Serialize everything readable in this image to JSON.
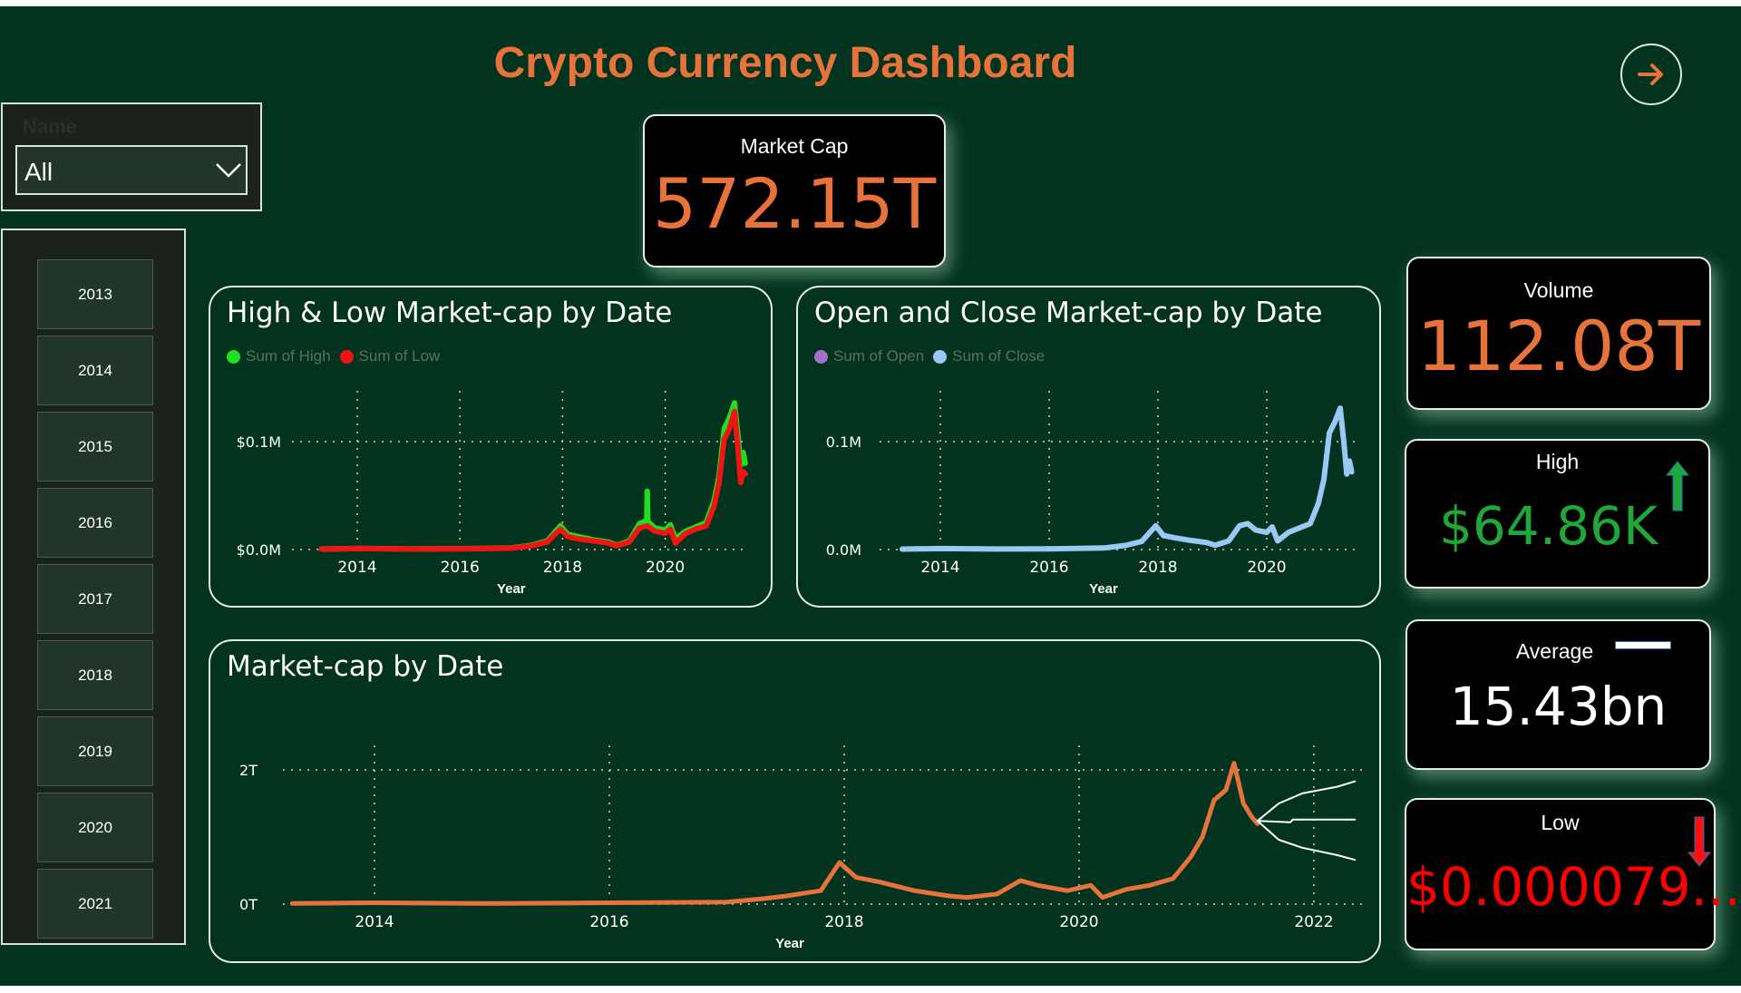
{
  "header": {
    "title": "Crypto Currency Dashboard",
    "nav_icon": "arrow-right-icon"
  },
  "slicer": {
    "label": "Name",
    "selected": "All"
  },
  "years": [
    "2013",
    "2014",
    "2015",
    "2016",
    "2017",
    "2018",
    "2019",
    "2020",
    "2021"
  ],
  "kpis": {
    "market_cap": {
      "label": "Market Cap",
      "value": "572.15T",
      "color": "#e8733a"
    },
    "volume": {
      "label": "Volume",
      "value": "112.08T",
      "color": "#e8733a"
    },
    "high": {
      "label": "High",
      "value": "$64.86K",
      "color": "#1fa83a",
      "indicator": "up-arrow"
    },
    "average": {
      "label": "Average",
      "value": "15.43bn",
      "color": "#ffffff",
      "indicator": "flat-bar"
    },
    "low": {
      "label": "Low",
      "value": "$0.000079...",
      "color": "#ff0000",
      "indicator": "down-arrow"
    }
  },
  "chart_data": [
    {
      "type": "line",
      "title": "High & Low Market-cap by Date",
      "xlabel": "Year",
      "ylabel": "",
      "x_ticks": [
        "2014",
        "2016",
        "2018",
        "2020"
      ],
      "y_ticks": [
        {
          "v": 0,
          "label": "$0.0M"
        },
        {
          "v": 100,
          "label": "$0.1M"
        }
      ],
      "y_unit": "K USD",
      "grid": true,
      "legend": "top-left",
      "series": [
        {
          "name": "Sum of High",
          "color": "#1fe01f",
          "points": [
            [
              2013.3,
              0.5
            ],
            [
              2014,
              1
            ],
            [
              2015,
              0.6
            ],
            [
              2016,
              0.8
            ],
            [
              2017,
              1.5
            ],
            [
              2017.4,
              4
            ],
            [
              2017.7,
              8
            ],
            [
              2017.96,
              22
            ],
            [
              2018.1,
              14
            ],
            [
              2018.3,
              12
            ],
            [
              2018.6,
              9
            ],
            [
              2018.9,
              7
            ],
            [
              2019.05,
              4
            ],
            [
              2019.3,
              8
            ],
            [
              2019.5,
              24
            ],
            [
              2019.64,
              27
            ],
            [
              2019.65,
              54
            ],
            [
              2019.66,
              26
            ],
            [
              2019.8,
              20
            ],
            [
              2020,
              18
            ],
            [
              2020.1,
              23
            ],
            [
              2020.2,
              10
            ],
            [
              2020.4,
              17
            ],
            [
              2020.6,
              21
            ],
            [
              2020.8,
              25
            ],
            [
              2020.95,
              45
            ],
            [
              2021.05,
              68
            ],
            [
              2021.15,
              112
            ],
            [
              2021.25,
              122
            ],
            [
              2021.35,
              136
            ],
            [
              2021.42,
              104
            ],
            [
              2021.47,
              78
            ],
            [
              2021.52,
              90
            ],
            [
              2021.56,
              80
            ]
          ]
        },
        {
          "name": "Sum of Low",
          "color": "#f21414",
          "points": [
            [
              2013.3,
              0.4
            ],
            [
              2014,
              0.9
            ],
            [
              2015,
              0.5
            ],
            [
              2016,
              0.7
            ],
            [
              2017,
              1.3
            ],
            [
              2017.4,
              3.5
            ],
            [
              2017.7,
              7
            ],
            [
              2017.96,
              19
            ],
            [
              2018.1,
              12
            ],
            [
              2018.3,
              10
            ],
            [
              2018.6,
              8
            ],
            [
              2018.9,
              6
            ],
            [
              2019.05,
              3.5
            ],
            [
              2019.3,
              7
            ],
            [
              2019.5,
              20
            ],
            [
              2019.65,
              22
            ],
            [
              2019.8,
              17
            ],
            [
              2020,
              15
            ],
            [
              2020.1,
              19
            ],
            [
              2020.2,
              6
            ],
            [
              2020.4,
              15
            ],
            [
              2020.6,
              19
            ],
            [
              2020.8,
              22
            ],
            [
              2020.95,
              40
            ],
            [
              2021.05,
              62
            ],
            [
              2021.15,
              102
            ],
            [
              2021.25,
              112
            ],
            [
              2021.35,
              128
            ],
            [
              2021.42,
              92
            ],
            [
              2021.47,
              62
            ],
            [
              2021.52,
              72
            ],
            [
              2021.56,
              70
            ]
          ]
        }
      ]
    },
    {
      "type": "line",
      "title": "Open and Close Market-cap by Date",
      "xlabel": "Year",
      "ylabel": "",
      "x_ticks": [
        "2014",
        "2016",
        "2018",
        "2020"
      ],
      "y_ticks": [
        {
          "v": 0,
          "label": "0.0M"
        },
        {
          "v": 100,
          "label": "0.1M"
        }
      ],
      "y_unit": "K USD",
      "grid": true,
      "legend": "top-left",
      "series": [
        {
          "name": "Sum of Open",
          "color": "#a86fc6",
          "points": []
        },
        {
          "name": "Sum of Close",
          "color": "#99c9f5",
          "points": [
            [
              2013.3,
              0.4
            ],
            [
              2014,
              0.9
            ],
            [
              2015,
              0.5
            ],
            [
              2016,
              0.7
            ],
            [
              2017,
              1.4
            ],
            [
              2017.4,
              3.8
            ],
            [
              2017.7,
              7.5
            ],
            [
              2017.96,
              22
            ],
            [
              2018.1,
              13
            ],
            [
              2018.3,
              11
            ],
            [
              2018.6,
              8.5
            ],
            [
              2018.9,
              6.5
            ],
            [
              2019.05,
              4
            ],
            [
              2019.3,
              8
            ],
            [
              2019.5,
              22
            ],
            [
              2019.65,
              24
            ],
            [
              2019.8,
              18
            ],
            [
              2020,
              16
            ],
            [
              2020.1,
              21
            ],
            [
              2020.2,
              8
            ],
            [
              2020.4,
              16
            ],
            [
              2020.6,
              20
            ],
            [
              2020.8,
              24
            ],
            [
              2020.95,
              43
            ],
            [
              2021.05,
              65
            ],
            [
              2021.15,
              108
            ],
            [
              2021.25,
              118
            ],
            [
              2021.35,
              131
            ],
            [
              2021.42,
              98
            ],
            [
              2021.47,
              70
            ],
            [
              2021.52,
              82
            ],
            [
              2021.56,
              72
            ]
          ]
        }
      ]
    },
    {
      "type": "line",
      "title": "Market-cap by Date",
      "xlabel": "Year",
      "ylabel": "",
      "x_ticks": [
        "2014",
        "2016",
        "2018",
        "2020",
        "2022"
      ],
      "y_ticks": [
        {
          "v": 0,
          "label": "0T"
        },
        {
          "v": 2,
          "label": "2T"
        }
      ],
      "y_unit": "T USD",
      "grid": true,
      "legend": "none",
      "series": [
        {
          "name": "Market-cap",
          "color": "#e8733a",
          "points": [
            [
              2013.3,
              0.01
            ],
            [
              2014,
              0.02
            ],
            [
              2015,
              0.01
            ],
            [
              2016,
              0.02
            ],
            [
              2017,
              0.03
            ],
            [
              2017.3,
              0.08
            ],
            [
              2017.5,
              0.12
            ],
            [
              2017.8,
              0.2
            ],
            [
              2017.96,
              0.62
            ],
            [
              2018.1,
              0.4
            ],
            [
              2018.3,
              0.33
            ],
            [
              2018.6,
              0.2
            ],
            [
              2018.9,
              0.12
            ],
            [
              2019.05,
              0.1
            ],
            [
              2019.3,
              0.15
            ],
            [
              2019.5,
              0.35
            ],
            [
              2019.65,
              0.28
            ],
            [
              2019.9,
              0.2
            ],
            [
              2020.1,
              0.28
            ],
            [
              2020.2,
              0.1
            ],
            [
              2020.4,
              0.22
            ],
            [
              2020.6,
              0.28
            ],
            [
              2020.8,
              0.38
            ],
            [
              2020.95,
              0.7
            ],
            [
              2021.05,
              1.0
            ],
            [
              2021.15,
              1.55
            ],
            [
              2021.25,
              1.7
            ],
            [
              2021.32,
              2.1
            ],
            [
              2021.4,
              1.5
            ],
            [
              2021.47,
              1.3
            ],
            [
              2021.52,
              1.2
            ]
          ]
        },
        {
          "name": "Forecast upper",
          "color": "#ffffff",
          "points": [
            [
              2021.52,
              1.24
            ],
            [
              2021.7,
              1.5
            ],
            [
              2021.9,
              1.65
            ],
            [
              2022.2,
              1.75
            ],
            [
              2022.35,
              1.83
            ]
          ]
        },
        {
          "name": "Forecast",
          "color": "#ffffff",
          "points": [
            [
              2021.52,
              1.24
            ],
            [
              2021.8,
              1.22
            ],
            [
              2021.82,
              1.26
            ],
            [
              2022.35,
              1.26
            ]
          ]
        },
        {
          "name": "Forecast lower",
          "color": "#ffffff",
          "points": [
            [
              2021.52,
              1.24
            ],
            [
              2021.7,
              0.96
            ],
            [
              2021.9,
              0.84
            ],
            [
              2022.2,
              0.73
            ],
            [
              2022.35,
              0.66
            ]
          ]
        }
      ]
    }
  ]
}
